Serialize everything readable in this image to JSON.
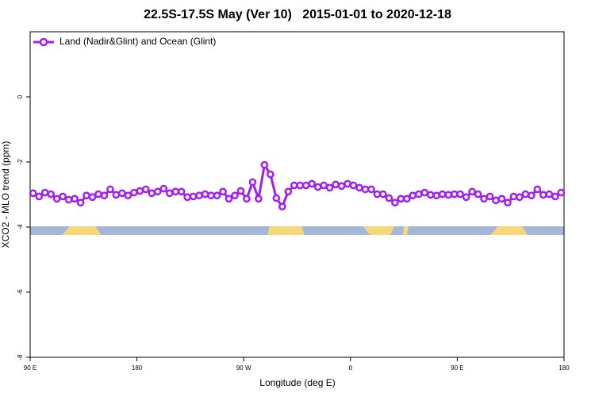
{
  "chart_data": {
    "type": "line",
    "title": "22.5S-17.5S May (Ver 10)   2015-01-01 to 2020-12-18",
    "xlabel": "Longitude (deg E)",
    "ylabel": "XCO2 - MLO trend (ppm)",
    "x": [
      92.5,
      97.5,
      102.5,
      107.5,
      112.5,
      117.5,
      122.5,
      127.5,
      132.5,
      137.5,
      142.5,
      147.5,
      152.5,
      157.5,
      162.5,
      167.5,
      172.5,
      177.5,
      182.5,
      187.5,
      192.5,
      197.5,
      202.5,
      207.5,
      212.5,
      217.5,
      222.5,
      227.5,
      232.5,
      237.5,
      242.5,
      247.5,
      252.5,
      257.5,
      262.5,
      267.5,
      272.5,
      277.5,
      282.5,
      287.5,
      292.5,
      297.5,
      302.5,
      307.5,
      312.5,
      317.5,
      322.5,
      327.5,
      332.5,
      337.5,
      342.5,
      347.5,
      352.5,
      357.5,
      362.5,
      367.5,
      372.5,
      377.5,
      382.5,
      387.5,
      392.5,
      397.5,
      402.5,
      407.5,
      412.5,
      417.5,
      422.5,
      427.5,
      432.5,
      437.5,
      442.5,
      447.5,
      452.5,
      457.5,
      462.5,
      467.5,
      472.5,
      477.5,
      482.5,
      487.5,
      492.5,
      497.5,
      502.5,
      507.5,
      512.5,
      517.5,
      522.5,
      527.5,
      532.5,
      537.5
    ],
    "series": [
      {
        "name": "Land (Nadir&Glint) and Ocean (Glint)",
        "color": "#a020f0",
        "values": [
          -2.96,
          -3.06,
          -2.94,
          -2.99,
          -3.13,
          -3.06,
          -3.16,
          -3.13,
          -3.25,
          -3.03,
          -3.08,
          -2.99,
          -3.03,
          -2.84,
          -3.01,
          -2.96,
          -3.03,
          -2.94,
          -2.89,
          -2.84,
          -2.96,
          -2.91,
          -2.82,
          -2.96,
          -2.91,
          -2.91,
          -3.08,
          -3.06,
          -3.03,
          -2.99,
          -3.03,
          -3.03,
          -2.91,
          -3.13,
          -3.03,
          -2.89,
          -3.13,
          -2.62,
          -3.13,
          -2.09,
          -2.38,
          -3.11,
          -3.37,
          -2.91,
          -2.72,
          -2.72,
          -2.72,
          -2.67,
          -2.77,
          -2.72,
          -2.79,
          -2.69,
          -2.74,
          -2.67,
          -2.72,
          -2.79,
          -2.84,
          -2.84,
          -2.99,
          -2.99,
          -3.11,
          -3.25,
          -3.13,
          -3.13,
          -3.03,
          -2.99,
          -2.94,
          -3.01,
          -3.03,
          -2.99,
          -3.01,
          -2.99,
          -2.99,
          -3.08,
          -2.91,
          -2.99,
          -3.13,
          -3.06,
          -3.18,
          -3.13,
          -3.25,
          -3.06,
          -3.08,
          -2.99,
          -3.03,
          -2.84,
          -3.01,
          -2.99,
          -3.06,
          -2.94
        ]
      }
    ],
    "xlim": [
      90,
      540
    ],
    "xticks": [
      {
        "value": 90,
        "label": "90 E"
      },
      180,
      {
        "value": 270,
        "label": "90 W"
      },
      {
        "value": 360,
        "label": "0"
      },
      {
        "value": 450,
        "label": "90 E"
      },
      {
        "value": 540,
        "label": "180"
      }
    ],
    "ylim": [
      -8,
      2
    ],
    "yticks": [
      0,
      -2,
      -4,
      -6,
      -8
    ],
    "legend": "top-left"
  }
}
